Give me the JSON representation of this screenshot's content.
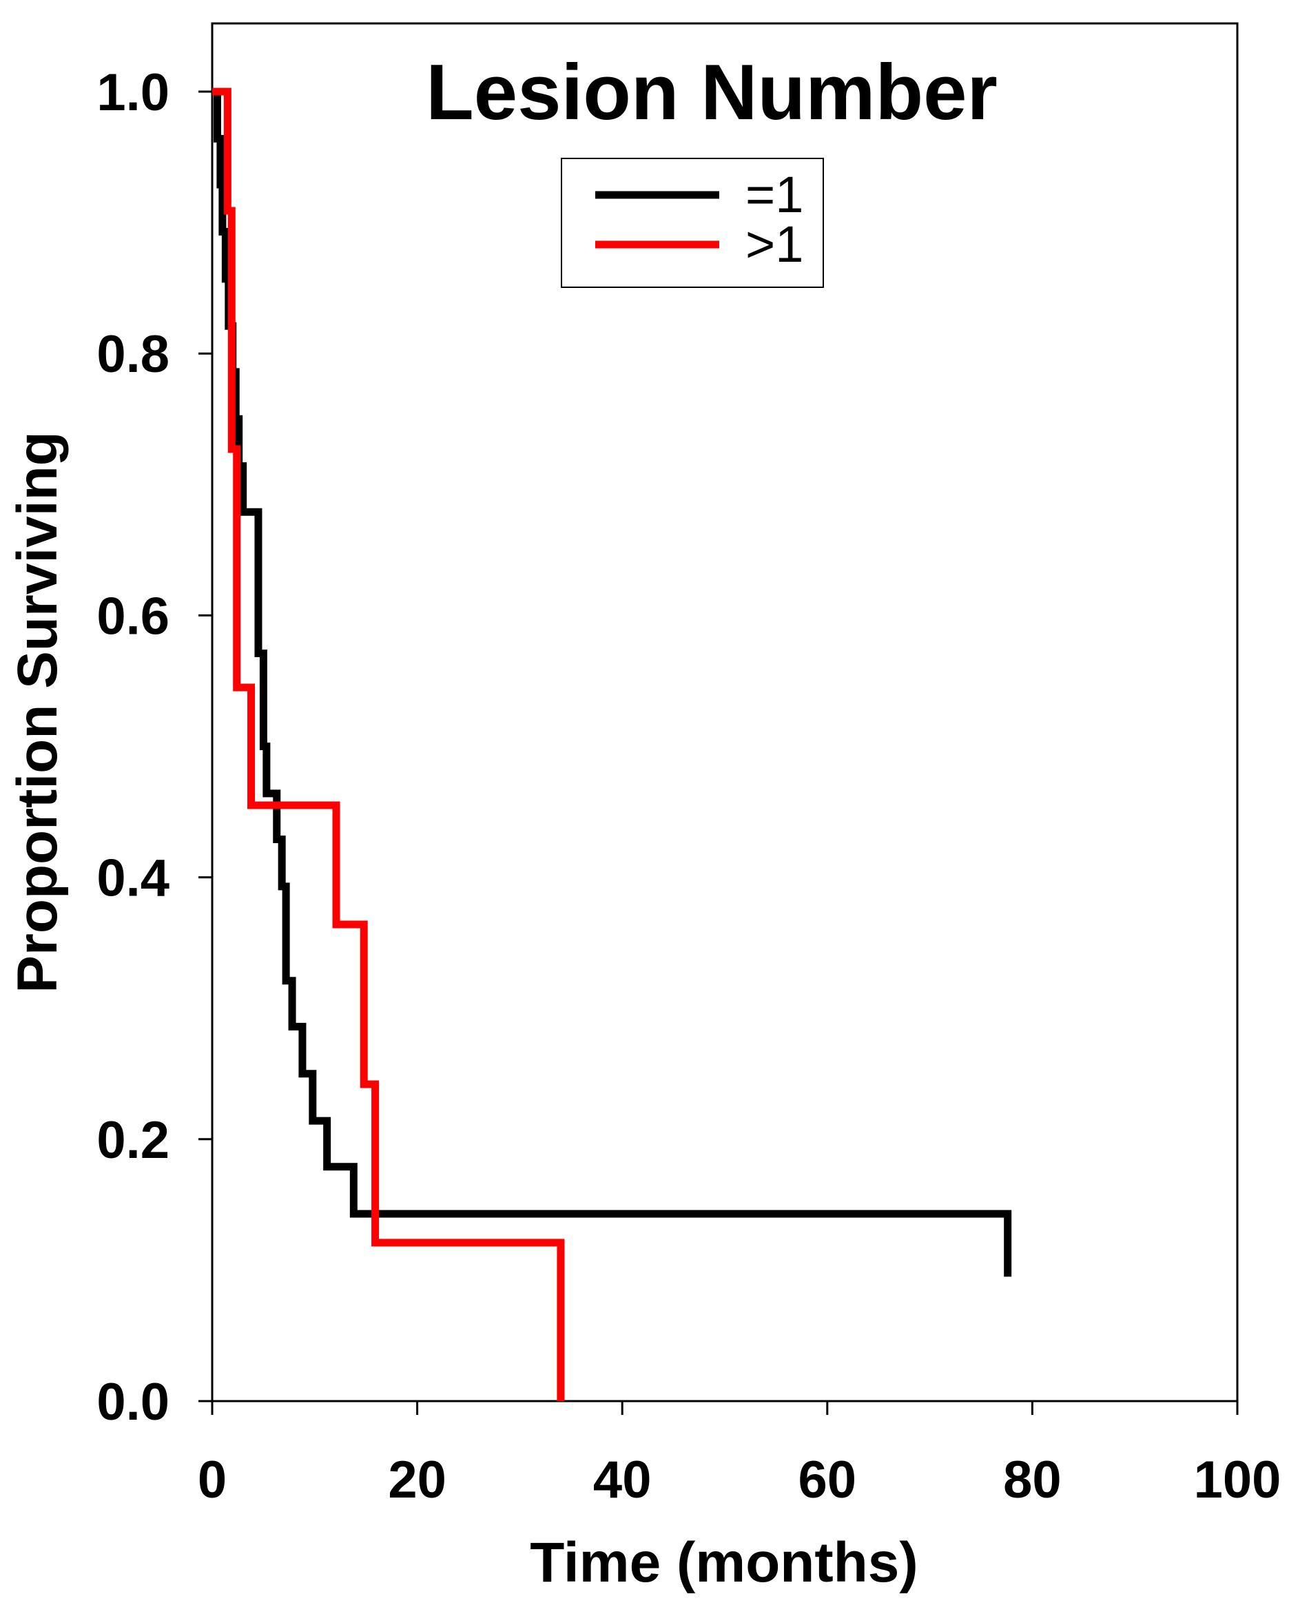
{
  "chart_data": {
    "type": "line",
    "title": "Lesion Number",
    "xlabel": "Time (months)",
    "ylabel": "Proportion Surviving",
    "xlim": [
      0,
      100
    ],
    "ylim": [
      0,
      1.05
    ],
    "xticks": [
      "0",
      "20",
      "40",
      "60",
      "80",
      "100"
    ],
    "yticks": [
      "0.0",
      "0.2",
      "0.4",
      "0.6",
      "0.8",
      "1.0"
    ],
    "grid": false,
    "legend_position": "top-center",
    "series": [
      {
        "name": "=1",
        "color": "#000000",
        "step": true,
        "x": [
          0,
          0.5,
          0.8,
          1.0,
          1.3,
          1.6,
          2.0,
          2.3,
          2.6,
          3.0,
          4.5,
          5.0,
          5.3,
          6.3,
          6.8,
          7.2,
          7.8,
          8.8,
          9.8,
          11.2,
          13.8,
          77.6
        ],
        "y": [
          1.0,
          0.964,
          0.929,
          0.893,
          0.857,
          0.821,
          0.786,
          0.75,
          0.714,
          0.679,
          0.571,
          0.5,
          0.464,
          0.429,
          0.393,
          0.321,
          0.286,
          0.25,
          0.214,
          0.179,
          0.143,
          0.095
        ]
      },
      {
        "name": ">1",
        "color": "#ff0000",
        "step": true,
        "x": [
          0,
          1.5,
          1.9,
          2.4,
          3.8,
          12.1,
          14.8,
          15.9,
          34.0
        ],
        "y": [
          1.0,
          0.909,
          0.727,
          0.545,
          0.455,
          0.364,
          0.242,
          0.121,
          0.0
        ]
      }
    ]
  }
}
